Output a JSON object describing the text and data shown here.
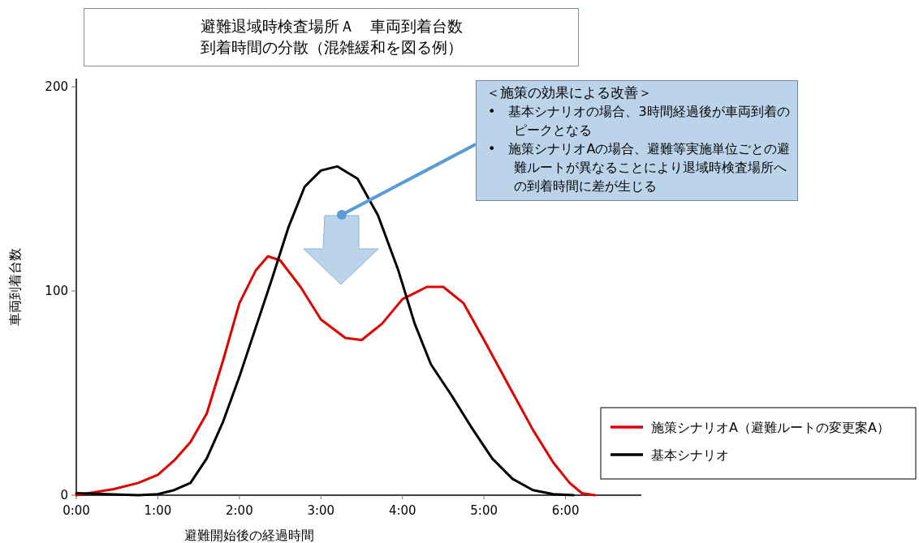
{
  "chart_data": {
    "type": "line",
    "title": "避難退域時検査場所Ａ　車両到着台数",
    "subtitle": "到着時間の分散（混雑緩和を図る例）",
    "xlabel": "避難開始後の経過時間",
    "ylabel": "車両到着台数",
    "annotations": [
      "＜施策の効果による改善＞",
      "•　基本シナリオの場合、3時間経過後が車両到着のピークとなる",
      "•　施策シナリオAの場合、避難等実施単位ごとの避難ルートが異なることにより退域時検査場所への到着時間に差が生じる"
    ],
    "xlim": [
      0,
      6.93
    ],
    "xticks": [
      {
        "value": 0,
        "label": "0:00"
      },
      {
        "value": 1,
        "label": "1:00"
      },
      {
        "value": 2,
        "label": "2:00"
      },
      {
        "value": 3,
        "label": "3:00"
      },
      {
        "value": 4,
        "label": "4:00"
      },
      {
        "value": 5,
        "label": "5:00"
      },
      {
        "value": 6,
        "label": "6:00"
      }
    ],
    "ylim": [
      0,
      204
    ],
    "yticks": [
      0,
      100,
      200
    ],
    "grid": false,
    "legend": "bottom right",
    "marker": "none",
    "line_style": "solid",
    "series": [
      {
        "name": "施策シナリオA（避難ルートの変更案A）",
        "color": "#e00000",
        "x": [
          0,
          0.46,
          0.76,
          1.0,
          1.2,
          1.4,
          1.6,
          1.8,
          2.0,
          2.2,
          2.35,
          2.5,
          2.75,
          3.0,
          3.3,
          3.5,
          3.75,
          4.0,
          4.3,
          4.5,
          4.75,
          5.0,
          5.3,
          5.6,
          5.85,
          6.05,
          6.2,
          6.36
        ],
        "values": [
          0,
          3,
          6,
          10,
          17,
          26,
          40,
          66,
          94,
          110,
          117,
          115,
          102,
          86,
          77,
          76,
          84,
          96,
          102,
          102,
          94,
          76,
          54,
          32,
          16,
          6,
          1,
          0
        ]
      },
      {
        "name": "基本シナリオ",
        "color": "#000000",
        "x": [
          0,
          0.76,
          1.0,
          1.2,
          1.4,
          1.6,
          1.8,
          2.0,
          2.2,
          2.4,
          2.6,
          2.8,
          3.0,
          3.2,
          3.45,
          3.7,
          3.95,
          4.15,
          4.35,
          4.6,
          4.85,
          5.1,
          5.35,
          5.6,
          5.85,
          6.1
        ],
        "values": [
          1,
          0,
          0.5,
          2.5,
          6,
          18,
          36,
          58,
          82,
          106,
          131,
          151,
          159,
          161,
          155,
          137,
          110,
          84,
          64,
          49,
          33,
          18,
          8,
          2.5,
          0.5,
          0
        ]
      }
    ]
  }
}
